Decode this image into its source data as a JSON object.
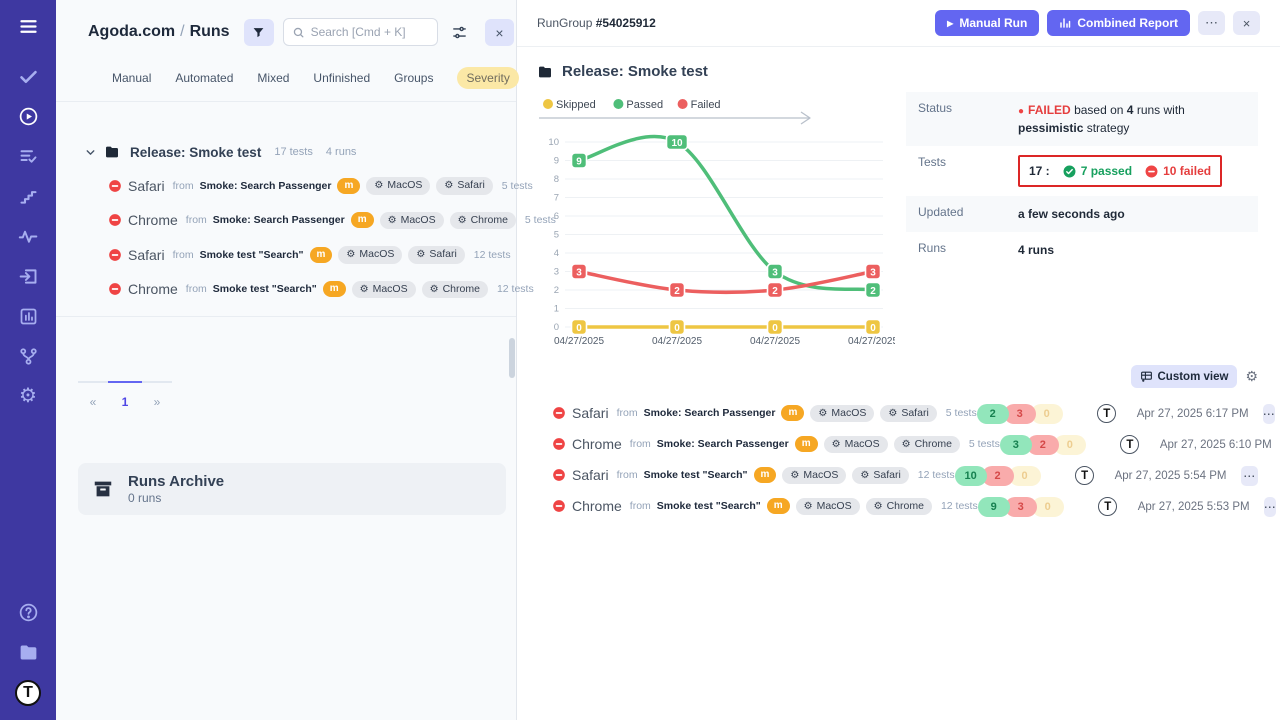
{
  "colors": {
    "accent": "#6366f1",
    "sidebar": "#3e38a1",
    "failed": "#e53e3e",
    "passed": "#17a05e",
    "skipped": "#eec643",
    "chart_passed": "#4fbe79",
    "chart_failed": "#ec5f5f",
    "chart_skipped": "#eec643"
  },
  "icons": {
    "gear": "⚙",
    "dots": "⋯",
    "close": "×",
    "prev": "«",
    "next": "»",
    "play": "▶",
    "question": "?",
    "t_logo": "T"
  },
  "left": {
    "breadcrumb": {
      "project": "Agoda.com",
      "separator": "/",
      "page": "Runs"
    },
    "search": {
      "placeholder": "Search [Cmd + K]"
    },
    "tabs": {
      "0": "Manual",
      "1": "Automated",
      "2": "Mixed",
      "3": "Unfinished",
      "4": "Groups",
      "severity": "Severity"
    },
    "group": {
      "name": "Release: Smoke test",
      "tests": "17 tests",
      "runs": "4 runs"
    },
    "runs": [
      {
        "name": "Safari",
        "from": "from",
        "source": "Smoke: Search Passenger",
        "badge": "m",
        "os": "MacOS",
        "browser": "Safari",
        "tests": "5 tests"
      },
      {
        "name": "Chrome",
        "from": "from",
        "source": "Smoke: Search Passenger",
        "badge": "m",
        "os": "MacOS",
        "browser": "Chrome",
        "tests": "5 tests"
      },
      {
        "name": "Safari",
        "from": "from",
        "source": "Smoke test \"Search\"",
        "badge": "m",
        "os": "MacOS",
        "browser": "Safari",
        "tests": "12 tests"
      },
      {
        "name": "Chrome",
        "from": "from",
        "source": "Smoke test \"Search\"",
        "badge": "m",
        "os": "MacOS",
        "browser": "Chrome",
        "tests": "12 tests"
      }
    ],
    "pagination": {
      "prev": "«",
      "page": "1",
      "next": "»"
    },
    "archive": {
      "title": "Runs Archive",
      "count": "0 runs"
    }
  },
  "right": {
    "header": {
      "label": "RunGroup",
      "id": "#54025912",
      "manual_run": "Manual Run",
      "combined_report": "Combined Report"
    },
    "title": "Release: Smoke test",
    "info": {
      "status_label": "Status",
      "status_failed": "FAILED",
      "status_text1": "based on",
      "status_runs": "4",
      "status_text2": "runs with",
      "status_strategy": "pessimistic",
      "status_text3": "strategy",
      "tests_label": "Tests",
      "tests_total": "17 :",
      "tests_passed": "7 passed",
      "tests_failed": "10 failed",
      "updated_label": "Updated",
      "updated_value": "a few seconds ago",
      "runs_label": "Runs",
      "runs_value": "4 runs"
    },
    "custom_view": "Custom view",
    "runs": [
      {
        "name": "Safari",
        "from": "from",
        "source": "Smoke: Search Passenger",
        "badge": "m",
        "os": "MacOS",
        "browser": "Safari",
        "tests": "5 tests",
        "passed": "2",
        "failed": "3",
        "skipped": "0",
        "date": "Apr 27, 2025 6:17 PM"
      },
      {
        "name": "Chrome",
        "from": "from",
        "source": "Smoke: Search Passenger",
        "badge": "m",
        "os": "MacOS",
        "browser": "Chrome",
        "tests": "5 tests",
        "passed": "3",
        "failed": "2",
        "skipped": "0",
        "date": "Apr 27, 2025 6:10 PM"
      },
      {
        "name": "Safari",
        "from": "from",
        "source": "Smoke test \"Search\"",
        "badge": "m",
        "os": "MacOS",
        "browser": "Safari",
        "tests": "12 tests",
        "passed": "10",
        "failed": "2",
        "skipped": "0",
        "date": "Apr 27, 2025 5:54 PM"
      },
      {
        "name": "Chrome",
        "from": "from",
        "source": "Smoke test \"Search\"",
        "badge": "m",
        "os": "MacOS",
        "browser": "Chrome",
        "tests": "12 tests",
        "passed": "9",
        "failed": "3",
        "skipped": "0",
        "date": "Apr 27, 2025 5:53 PM"
      }
    ]
  },
  "chart_data": {
    "type": "line",
    "x": [
      "04/27/2025",
      "04/27/2025",
      "04/27/2025",
      "04/27/2025"
    ],
    "series": [
      {
        "name": "Skipped",
        "color": "#eec643",
        "values": [
          0,
          0,
          0,
          0
        ]
      },
      {
        "name": "Passed",
        "color": "#4fbe79",
        "values": [
          9,
          10,
          3,
          2
        ]
      },
      {
        "name": "Failed",
        "color": "#ec5f5f",
        "values": [
          3,
          2,
          2,
          3
        ]
      }
    ],
    "ylim": [
      0,
      10
    ],
    "yticks": [
      0,
      1,
      2,
      3,
      4,
      5,
      6,
      7,
      8,
      9,
      10
    ],
    "legend_position": "top",
    "grid": "horizontal",
    "point_labels": true
  }
}
